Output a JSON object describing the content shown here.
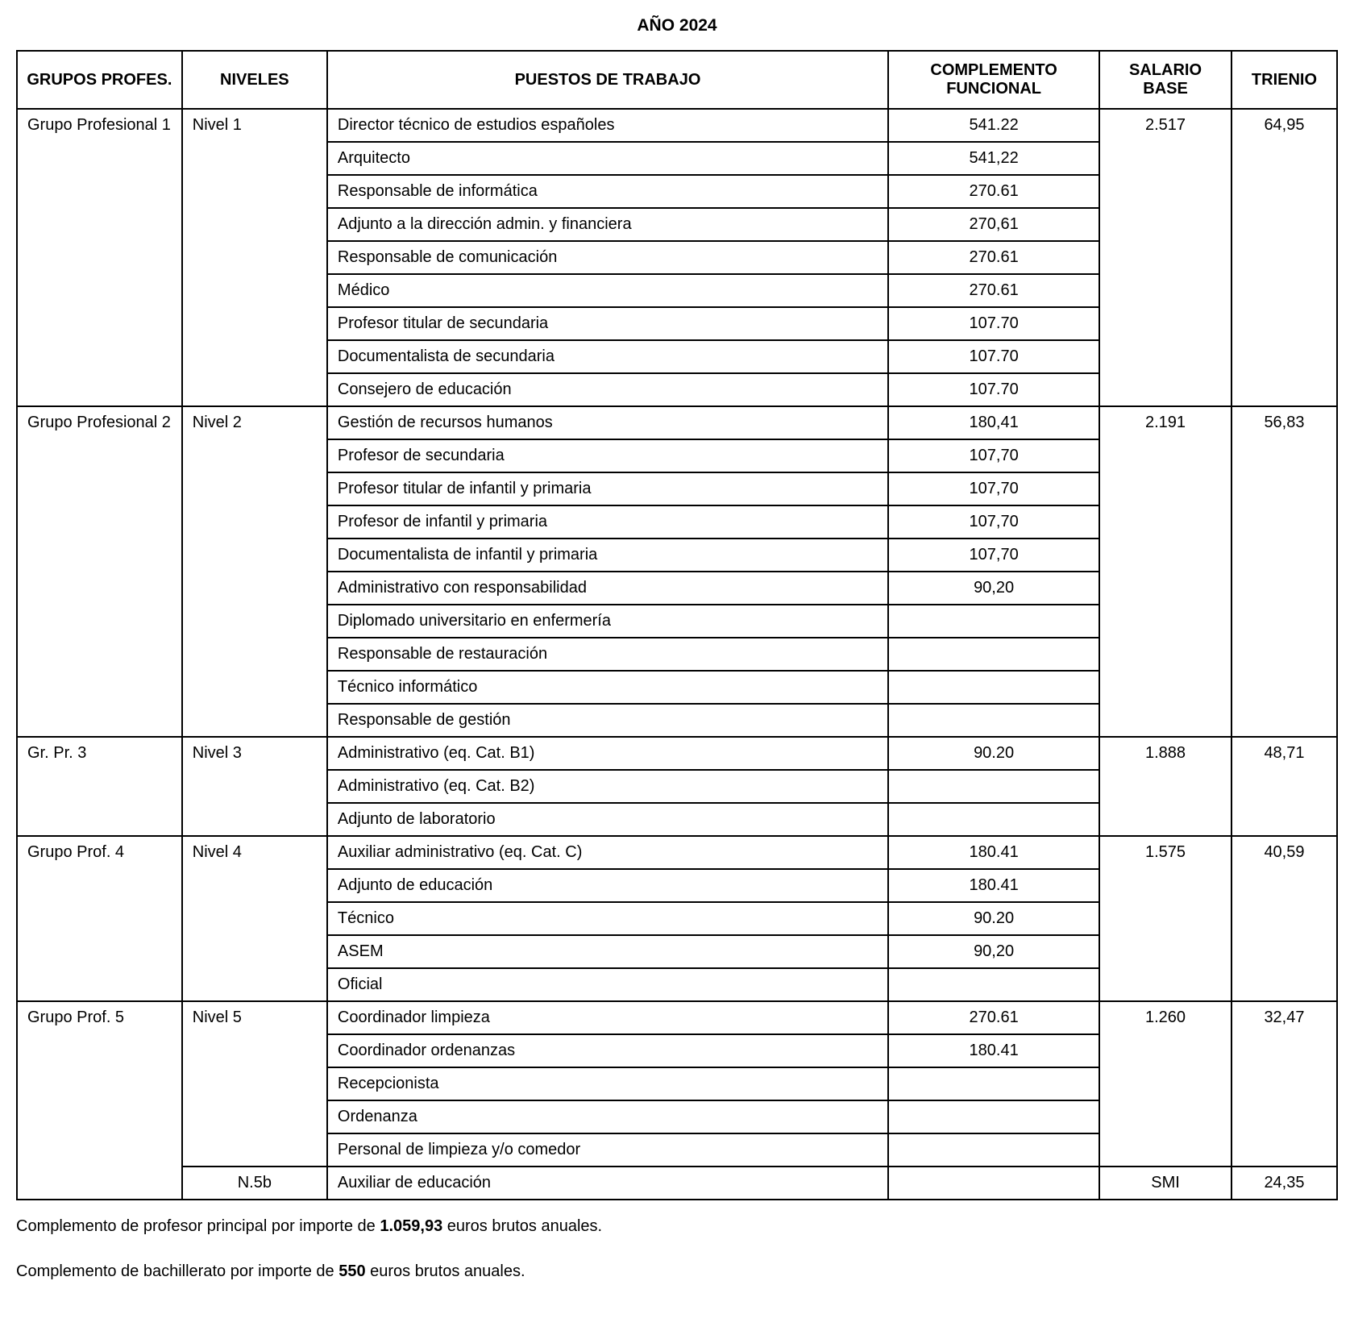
{
  "title": "AÑO 2024",
  "headers": {
    "grupos": "GRUPOS PROFES.",
    "niveles": "NIVELES",
    "puestos": "PUESTOS DE TRABAJO",
    "complemento": "COMPLEMENTO FUNCIONAL",
    "salario": "SALARIO BASE",
    "trienio": "TRIENIO"
  },
  "groups": [
    {
      "grupo": "Grupo Profesional 1",
      "nivel": "Nivel 1",
      "salario": "2.517",
      "trienio": "64,95",
      "rows": [
        {
          "puesto": "Director técnico de estudios españoles",
          "complemento": "541.22"
        },
        {
          "puesto": "Arquitecto",
          "complemento": "541,22"
        },
        {
          "puesto": "Responsable de informática",
          "complemento": "270.61"
        },
        {
          "puesto": "Adjunto a la dirección admin. y financiera",
          "complemento": "270,61"
        },
        {
          "puesto": "Responsable de comunicación",
          "complemento": "270.61"
        },
        {
          "puesto": "Médico",
          "complemento": "270.61"
        },
        {
          "puesto": "Profesor titular de secundaria",
          "complemento": "107.70"
        },
        {
          "puesto": "Documentalista de secundaria",
          "complemento": "107.70"
        },
        {
          "puesto": "Consejero de educación",
          "complemento": "107.70"
        }
      ]
    },
    {
      "grupo": "Grupo Profesional 2",
      "nivel": "Nivel 2",
      "salario": "2.191",
      "trienio": "56,83",
      "rows": [
        {
          "puesto": "Gestión de recursos humanos",
          "complemento": "180,41"
        },
        {
          "puesto": "Profesor de secundaria",
          "complemento": "107,70"
        },
        {
          "puesto": "Profesor titular de infantil y primaria",
          "complemento": "107,70"
        },
        {
          "puesto": "Profesor de infantil y primaria",
          "complemento": "107,70"
        },
        {
          "puesto": "Documentalista de infantil y primaria",
          "complemento": "107,70"
        },
        {
          "puesto": "Administrativo con responsabilidad",
          "complemento": "90,20"
        },
        {
          "puesto": "Diplomado universitario en enfermería",
          "complemento": ""
        },
        {
          "puesto": "Responsable de restauración",
          "complemento": ""
        },
        {
          "puesto": "Técnico informático",
          "complemento": ""
        },
        {
          "puesto": "Responsable de gestión",
          "complemento": ""
        }
      ]
    },
    {
      "grupo": "Gr. Pr. 3",
      "nivel": "Nivel 3",
      "salario": "1.888",
      "trienio": "48,71",
      "rows": [
        {
          "puesto": "Administrativo (eq. Cat. B1)",
          "complemento": "90.20"
        },
        {
          "puesto": "Administrativo (eq. Cat. B2)",
          "complemento": ""
        },
        {
          "puesto": "Adjunto de laboratorio",
          "complemento": ""
        }
      ]
    },
    {
      "grupo": "Grupo Prof. 4",
      "nivel": "Nivel 4",
      "salario": "1.575",
      "trienio": "40,59",
      "rows": [
        {
          "puesto": "Auxiliar administrativo (eq. Cat. C)",
          "complemento": "180.41"
        },
        {
          "puesto": "Adjunto de educación",
          "complemento": "180.41"
        },
        {
          "puesto": "Técnico",
          "complemento": "90.20"
        },
        {
          "puesto": "ASEM",
          "complemento": "90,20"
        },
        {
          "puesto": "Oficial",
          "complemento": ""
        }
      ]
    },
    {
      "grupo": "Grupo Prof. 5",
      "nivel": "Nivel 5",
      "salario": "1.260",
      "trienio": "32,47",
      "rows": [
        {
          "puesto": "Coordinador limpieza",
          "complemento": "270.61"
        },
        {
          "puesto": "Coordinador ordenanzas",
          "complemento": "180.41"
        },
        {
          "puesto": "Recepcionista",
          "complemento": ""
        },
        {
          "puesto": "Ordenanza",
          "complemento": ""
        },
        {
          "puesto": "Personal de limpieza y/o comedor",
          "complemento": ""
        }
      ],
      "extra_nivel": {
        "nivel": "N.5b",
        "puesto": "Auxiliar de educación",
        "complemento": "",
        "salario": "SMI",
        "trienio": "24,35"
      }
    }
  ],
  "footnotes": [
    {
      "prefix": "Complemento de profesor principal por importe de ",
      "bold": "1.059,93",
      "suffix": " euros brutos anuales."
    },
    {
      "prefix": "Complemento de bachillerato por importe de ",
      "bold": "550",
      "suffix": " euros brutos anuales."
    }
  ],
  "styling": {
    "border_color": "#000000",
    "background_color": "#ffffff",
    "text_color": "#000000",
    "font_family": "Arial",
    "header_fontsize": 21,
    "cell_fontsize": 20,
    "footnote_fontsize": 20
  }
}
